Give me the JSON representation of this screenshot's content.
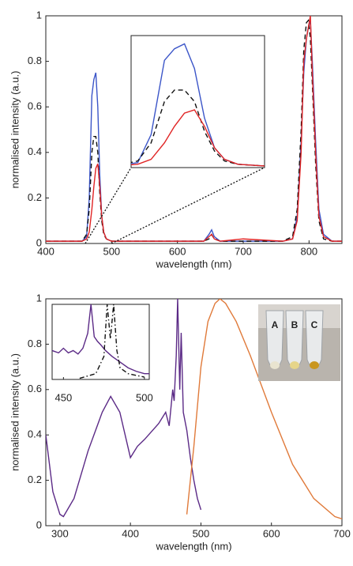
{
  "chart_data": [
    {
      "type": "line",
      "xlabel": "wavelength (nm)",
      "ylabel": "normalised intensity (a.u.)",
      "xlim": [
        400,
        850
      ],
      "ylim": [
        0,
        1
      ],
      "xticks": [
        400,
        500,
        600,
        700,
        800
      ],
      "yticks": [
        0,
        0.2,
        0.4,
        0.6,
        0.8,
        1
      ],
      "x": [
        400,
        440,
        455,
        462,
        466,
        470,
        473,
        476,
        479,
        482,
        485,
        488,
        492,
        500,
        520,
        600,
        640,
        648,
        652,
        656,
        665,
        700,
        760,
        775,
        782,
        788,
        792,
        796,
        799,
        802,
        805,
        810,
        815,
        822,
        835,
        850
      ],
      "series": [
        {
          "color": "#3b55c8",
          "dash": "solid",
          "values": [
            0.01,
            0.01,
            0.01,
            0.03,
            0.2,
            0.65,
            0.72,
            0.75,
            0.6,
            0.3,
            0.12,
            0.05,
            0.02,
            0.01,
            0.01,
            0.01,
            0.01,
            0.04,
            0.06,
            0.03,
            0.01,
            0.01,
            0.01,
            0.02,
            0.12,
            0.45,
            0.75,
            0.9,
            0.95,
            0.98,
            0.8,
            0.45,
            0.15,
            0.04,
            0.01,
            0.01
          ]
        },
        {
          "color": "#111111",
          "dash": "dashed",
          "values": [
            0.01,
            0.01,
            0.01,
            0.04,
            0.15,
            0.4,
            0.47,
            0.47,
            0.4,
            0.22,
            0.1,
            0.04,
            0.02,
            0.01,
            0.01,
            0.01,
            0.01,
            0.02,
            0.04,
            0.02,
            0.01,
            0.01,
            0.01,
            0.03,
            0.15,
            0.5,
            0.85,
            0.97,
            0.98,
            0.9,
            0.7,
            0.35,
            0.1,
            0.02,
            0.01,
            0.01
          ]
        },
        {
          "color": "#e02424",
          "dash": "solid",
          "values": [
            0.01,
            0.01,
            0.01,
            0.02,
            0.05,
            0.15,
            0.25,
            0.33,
            0.35,
            0.25,
            0.12,
            0.05,
            0.02,
            0.01,
            0.01,
            0.01,
            0.01,
            0.03,
            0.04,
            0.02,
            0.01,
            0.02,
            0.01,
            0.02,
            0.1,
            0.4,
            0.8,
            0.9,
            0.95,
            1.0,
            0.75,
            0.4,
            0.12,
            0.03,
            0.01,
            0.01
          ]
        }
      ],
      "inset": {
        "xlim": [
          460,
          500
        ],
        "ylim": [
          0,
          0.8
        ]
      }
    },
    {
      "type": "line",
      "xlabel": "wavelength (nm)",
      "ylabel": "normalised intensity (a.u.)",
      "xlim": [
        280,
        700
      ],
      "ylim": [
        0,
        1
      ],
      "xticks": [
        300,
        400,
        500,
        600,
        700
      ],
      "yticks": [
        0,
        0.2,
        0.4,
        0.6,
        0.8,
        1
      ],
      "series": [
        {
          "color": "#5b2a86",
          "dash": "solid",
          "x": [
            280,
            290,
            300,
            305,
            320,
            340,
            360,
            372,
            385,
            400,
            410,
            420,
            440,
            450,
            455,
            460,
            462,
            465,
            467,
            470,
            472,
            475,
            480,
            485,
            490,
            495,
            500
          ],
          "values": [
            0.4,
            0.15,
            0.05,
            0.04,
            0.12,
            0.33,
            0.5,
            0.57,
            0.5,
            0.3,
            0.35,
            0.38,
            0.45,
            0.5,
            0.44,
            0.6,
            0.55,
            0.75,
            1.0,
            0.6,
            0.85,
            0.5,
            0.42,
            0.3,
            0.2,
            0.12,
            0.07
          ]
        },
        {
          "color": "#e07a3a",
          "dash": "solid",
          "x": [
            480,
            490,
            500,
            510,
            520,
            527,
            535,
            550,
            570,
            600,
            630,
            660,
            690,
            700
          ],
          "values": [
            0.05,
            0.35,
            0.7,
            0.9,
            0.98,
            1.0,
            0.98,
            0.9,
            0.75,
            0.5,
            0.27,
            0.12,
            0.04,
            0.03
          ]
        }
      ],
      "inset": {
        "xlim": [
          443,
          503
        ],
        "ylim": [
          0.35,
          1.0
        ],
        "xticks": [
          450,
          500
        ],
        "series": [
          {
            "color": "#5b2a86",
            "dash": "solid",
            "x": [
              443,
              447,
              450,
              453,
              456,
              459,
              462,
              465,
              467,
              469,
              471,
              473,
              476,
              480,
              485,
              490,
              495,
              500,
              503
            ],
            "values": [
              0.6,
              0.58,
              0.62,
              0.58,
              0.6,
              0.57,
              0.62,
              0.75,
              1.0,
              0.72,
              0.68,
              0.65,
              0.6,
              0.55,
              0.5,
              0.45,
              0.42,
              0.4,
              0.4
            ]
          },
          {
            "color": "#111111",
            "dash": "dashdot",
            "x": [
              460,
              470,
              475,
              477,
              479,
              481,
              483,
              485,
              490,
              500
            ],
            "values": [
              0.36,
              0.4,
              0.55,
              1.0,
              0.7,
              1.0,
              0.6,
              0.45,
              0.4,
              0.37
            ]
          }
        ]
      },
      "photo": {
        "labels": [
          "A",
          "B",
          "C"
        ]
      }
    }
  ]
}
